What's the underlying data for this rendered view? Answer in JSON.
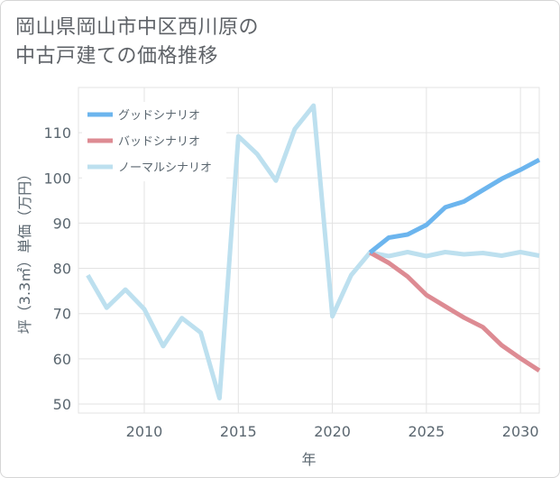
{
  "title_lines": [
    "岡山県岡山市中区西川原の",
    "中古戸建ての価格推移"
  ],
  "chart_data": {
    "type": "line",
    "title": "岡山県岡山市中区西川原の中古戸建ての価格推移",
    "xlabel": "年",
    "ylabel": "坪（3.3㎡）単価（万円）",
    "xlim": [
      2006.5,
      2031
    ],
    "ylim": [
      48,
      120
    ],
    "xticks": [
      2010,
      2015,
      2020,
      2025,
      2030
    ],
    "yticks": [
      50,
      60,
      70,
      80,
      90,
      100,
      110
    ],
    "series": [
      {
        "name": "グッドシナリオ",
        "color": "#6cb5ee",
        "x": [
          2022,
          2023,
          2024,
          2025,
          2026,
          2027,
          2028,
          2029,
          2030,
          2031
        ],
        "y": [
          83.5,
          86.8,
          87.5,
          89.6,
          93.5,
          94.8,
          97.3,
          99.8,
          101.8,
          104.0
        ]
      },
      {
        "name": "バッドシナリオ",
        "color": "#dd8b93",
        "x": [
          2022,
          2023,
          2024,
          2025,
          2026,
          2027,
          2028,
          2029,
          2030,
          2031
        ],
        "y": [
          83.5,
          81.2,
          78.2,
          74.1,
          71.6,
          69.1,
          67.0,
          63.0,
          60.1,
          57.4
        ]
      },
      {
        "name": "ノーマルシナリオ",
        "color": "#bde0ef",
        "x": [
          2007,
          2008,
          2009,
          2010,
          2011,
          2012,
          2013,
          2014,
          2015,
          2016,
          2017,
          2018,
          2019,
          2020,
          2021,
          2022,
          2023,
          2024,
          2025,
          2026,
          2027,
          2028,
          2029,
          2030,
          2031
        ],
        "y": [
          78.5,
          71.3,
          75.3,
          71.0,
          62.8,
          69.0,
          65.8,
          51.3,
          109.2,
          105.3,
          99.4,
          110.8,
          116.0,
          69.4,
          78.5,
          83.5,
          82.7,
          83.6,
          82.7,
          83.6,
          83.1,
          83.4,
          82.8,
          83.6,
          82.8
        ]
      }
    ]
  }
}
